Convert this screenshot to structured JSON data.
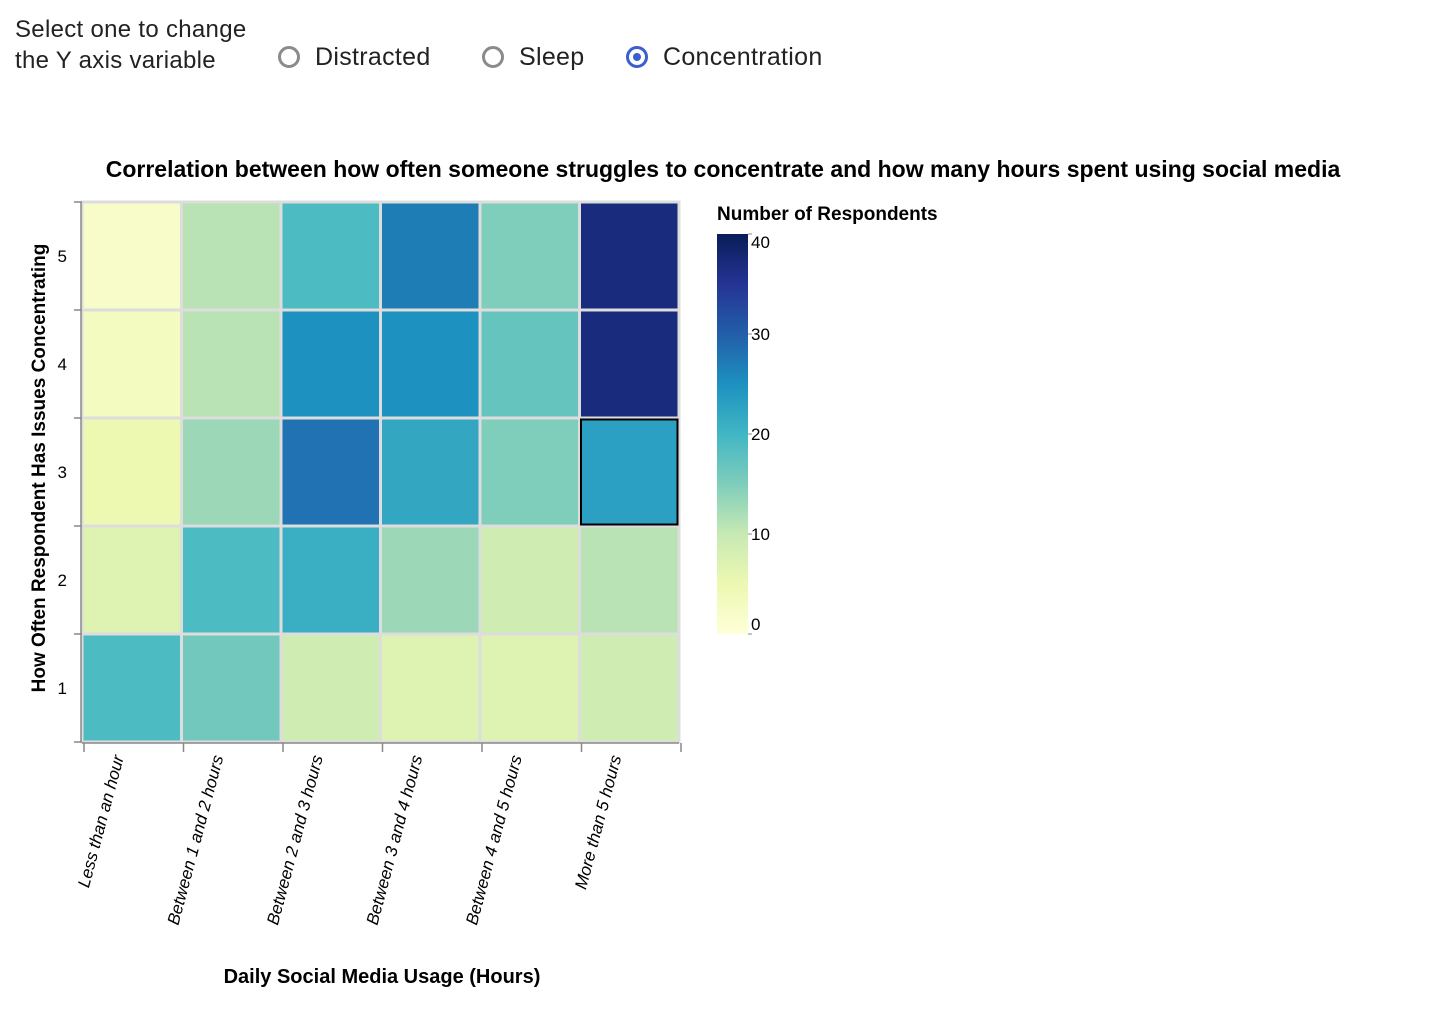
{
  "controls": {
    "prompt": "Select one to change the Y axis variable",
    "options": [
      {
        "label": "Distracted",
        "checked": false
      },
      {
        "label": "Sleep",
        "checked": false
      },
      {
        "label": "Concentration",
        "checked": true
      }
    ]
  },
  "colors": {
    "radio_checked": "#3b5fcc",
    "radio_unchecked": "#8a8a8f",
    "cell_border": "#dddddd",
    "highlight_border": "#000000"
  },
  "chart_data": {
    "type": "heatmap",
    "title": "Correlation between how often someone struggles to concentrate and how many hours spent using social media",
    "xlabel": "Daily Social Media Usage (Hours)",
    "ylabel": "How Often Respondent Has Issues Concentrating",
    "x_categories": [
      "Less than an hour",
      "Between 1 and 2 hours",
      "Between 2 and 3 hours",
      "Between 3 and 4 hours",
      "Between 4 and 5 hours",
      "More than 5 hours"
    ],
    "y_categories": [
      "5",
      "4",
      "3",
      "2",
      "1"
    ],
    "values": [
      [
        2,
        11,
        19,
        27,
        15,
        37
      ],
      [
        3,
        11,
        25,
        25,
        17,
        37
      ],
      [
        5,
        13,
        28,
        22,
        15,
        23
      ],
      [
        7,
        19,
        21,
        13,
        9,
        11
      ],
      [
        19,
        16,
        9,
        7,
        7,
        9
      ]
    ],
    "highlight": {
      "x": "More than 5 hours",
      "y": "3"
    },
    "legend": {
      "title": "Number of Respondents",
      "ticks": [
        40,
        30,
        20,
        10,
        0
      ],
      "domain": [
        0,
        40
      ]
    },
    "color_scheme": [
      "#ffffd9",
      "#edf8b1",
      "#c7e9b4",
      "#7fcdbb",
      "#41b6c4",
      "#1d91c0",
      "#225ea8",
      "#253494",
      "#081d58"
    ]
  }
}
